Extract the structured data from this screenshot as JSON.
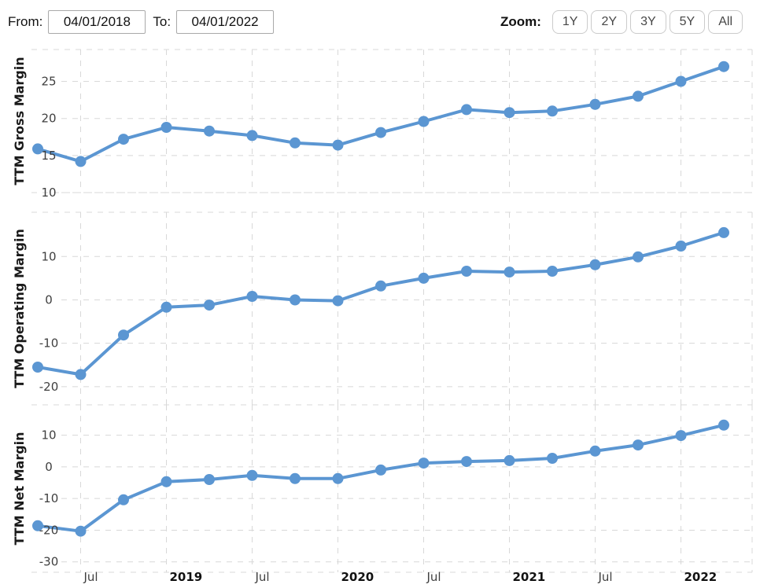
{
  "controls": {
    "from_label": "From:",
    "from_value": "04/01/2018",
    "to_label": "To:",
    "to_value": "04/01/2022",
    "zoom_label": "Zoom:",
    "zoom_buttons": [
      "1Y",
      "2Y",
      "3Y",
      "5Y",
      "All"
    ]
  },
  "colors": {
    "line": "#5b96d2",
    "grid": "#d8d8d8",
    "tick_text": "#3f3f3f",
    "axis_title_text": "#1a1a1a",
    "month_label_text": "#3f3f3f",
    "year_label_text": "#111111"
  },
  "chart_data": [
    {
      "type": "line",
      "ylabel": "TTM Gross Margin",
      "x": [
        "2018-04",
        "2018-07",
        "2018-10",
        "2019-01",
        "2019-04",
        "2019-07",
        "2019-10",
        "2020-01",
        "2020-04",
        "2020-07",
        "2020-10",
        "2021-01",
        "2021-04",
        "2021-07",
        "2021-10",
        "2022-01",
        "2022-04"
      ],
      "values": [
        15.9,
        14.2,
        17.2,
        18.8,
        18.3,
        17.7,
        16.7,
        16.4,
        18.1,
        19.6,
        21.2,
        20.8,
        21.0,
        21.9,
        23.0,
        25.0,
        27.0
      ],
      "yticks": [
        25,
        20,
        15,
        10
      ],
      "ylim": [
        10,
        29.3
      ],
      "grid": "dashed",
      "legend": "none"
    },
    {
      "type": "line",
      "ylabel": "TTM Operating Margin",
      "x": [
        "2018-04",
        "2018-07",
        "2018-10",
        "2019-01",
        "2019-04",
        "2019-07",
        "2019-10",
        "2020-01",
        "2020-04",
        "2020-07",
        "2020-10",
        "2021-01",
        "2021-04",
        "2021-07",
        "2021-10",
        "2022-01",
        "2022-04"
      ],
      "values": [
        -15.5,
        -17.2,
        -8.1,
        -1.7,
        -1.2,
        0.8,
        0.0,
        -0.2,
        3.2,
        5.0,
        6.6,
        6.4,
        6.6,
        8.1,
        9.9,
        12.4,
        15.5
      ],
      "yticks": [
        10,
        0,
        -10,
        -20
      ],
      "ylim": [
        -24.2,
        20.2
      ],
      "grid": "dashed",
      "legend": "none"
    },
    {
      "type": "line",
      "ylabel": "TTM Net Margin",
      "x": [
        "2018-04",
        "2018-07",
        "2018-10",
        "2019-01",
        "2019-04",
        "2019-07",
        "2019-10",
        "2020-01",
        "2020-04",
        "2020-07",
        "2020-10",
        "2021-01",
        "2021-04",
        "2021-07",
        "2021-10",
        "2022-01",
        "2022-04"
      ],
      "values": [
        -18.6,
        -20.3,
        -10.4,
        -4.7,
        -4.0,
        -2.7,
        -3.7,
        -3.7,
        -1.0,
        1.2,
        1.7,
        2.0,
        2.7,
        5.0,
        6.9,
        9.9,
        13.2
      ],
      "yticks": [
        10,
        0,
        -10,
        -20,
        -30
      ],
      "ylim": [
        -33.3,
        19.6
      ],
      "grid": "dashed",
      "legend": "none"
    }
  ],
  "x_axis": {
    "tick_labels": [
      {
        "label": "Jul",
        "month": 3,
        "bold": false
      },
      {
        "label": "2019",
        "month": 9,
        "bold": true
      },
      {
        "label": "Jul",
        "month": 15,
        "bold": false
      },
      {
        "label": "2020",
        "month": 21,
        "bold": true
      },
      {
        "label": "Jul",
        "month": 27,
        "bold": false
      },
      {
        "label": "2021",
        "month": 33,
        "bold": true
      },
      {
        "label": "Jul",
        "month": 39,
        "bold": false
      },
      {
        "label": "2022",
        "month": 45,
        "bold": true
      }
    ]
  }
}
